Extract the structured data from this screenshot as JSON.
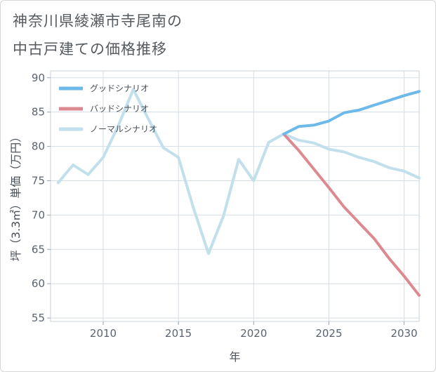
{
  "title": {
    "line1": "神奈川県綾瀬市寺尾南の",
    "line2": "中古戸建ての価格推移"
  },
  "chart_data": {
    "type": "line",
    "xlabel": "年",
    "ylabel": "坪（3.3㎡）単価（万円）",
    "xlim": [
      2006.5,
      2031
    ],
    "ylim": [
      54.5,
      91
    ],
    "x_ticks": [
      2010,
      2015,
      2020,
      2025,
      2030
    ],
    "y_ticks": [
      55,
      60,
      65,
      70,
      75,
      80,
      85,
      90
    ],
    "grid": true,
    "legend_position": "top-left",
    "series": [
      {
        "name": "グッドシナリオ",
        "color": "#6cb9ea",
        "x": [
          2022,
          2023,
          2024,
          2025,
          2026,
          2027,
          2028,
          2029,
          2030,
          2031
        ],
        "y": [
          81.8,
          82.9,
          83.1,
          83.7,
          84.9,
          85.3,
          86.0,
          86.7,
          87.4,
          88.0
        ]
      },
      {
        "name": "バッドシナリオ",
        "color": "#dc8a92",
        "x": [
          2022,
          2023,
          2024,
          2025,
          2026,
          2027,
          2028,
          2029,
          2030,
          2031
        ],
        "y": [
          81.8,
          79.4,
          76.7,
          74.0,
          71.2,
          68.9,
          66.6,
          63.7,
          61.1,
          58.3
        ]
      },
      {
        "name": "ノーマルシナリオ",
        "color": "#c2dfec",
        "x": [
          2007,
          2008,
          2009,
          2010,
          2011,
          2012,
          2013,
          2014,
          2015,
          2016,
          2017,
          2018,
          2019,
          2020,
          2021,
          2022,
          2023,
          2024,
          2025,
          2026,
          2027,
          2028,
          2029,
          2030,
          2031
        ],
        "y": [
          74.7,
          77.3,
          75.9,
          78.4,
          83.0,
          88.3,
          84.0,
          79.8,
          78.4,
          71.0,
          64.4,
          69.9,
          78.1,
          75.0,
          80.6,
          81.8,
          80.9,
          80.5,
          79.6,
          79.2,
          78.4,
          77.8,
          76.9,
          76.4,
          75.4
        ]
      }
    ]
  }
}
